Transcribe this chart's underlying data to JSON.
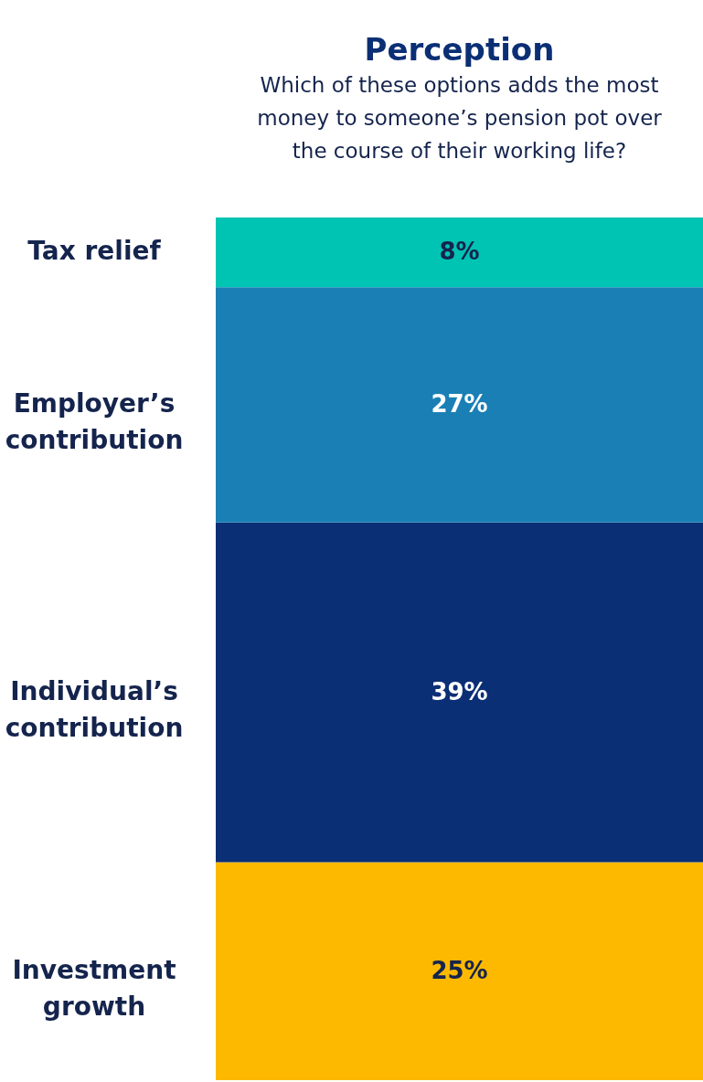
{
  "chart_data": {
    "type": "bar",
    "stacked": true,
    "title": "Perception",
    "subtitle": "Which of these options adds the most money to someone’s pension pot over the course of their working life?",
    "categories": [
      null
    ],
    "series": [
      {
        "name": "Investment growth",
        "color": "#fdb900",
        "values": [
          25
        ],
        "value_labels": [
          "25%"
        ]
      },
      {
        "name": "Individual’s contribution",
        "color": "#0b2f75",
        "values": [
          39
        ],
        "value_labels": [
          "39%"
        ]
      },
      {
        "name": "Employer’s contribution",
        "color": "#1a7fb5",
        "values": [
          27
        ],
        "value_labels": [
          "27%"
        ]
      },
      {
        "name": "Tax relief",
        "color": "#00c4b3",
        "values": [
          8
        ],
        "value_labels": [
          "8%"
        ]
      }
    ]
  }
}
